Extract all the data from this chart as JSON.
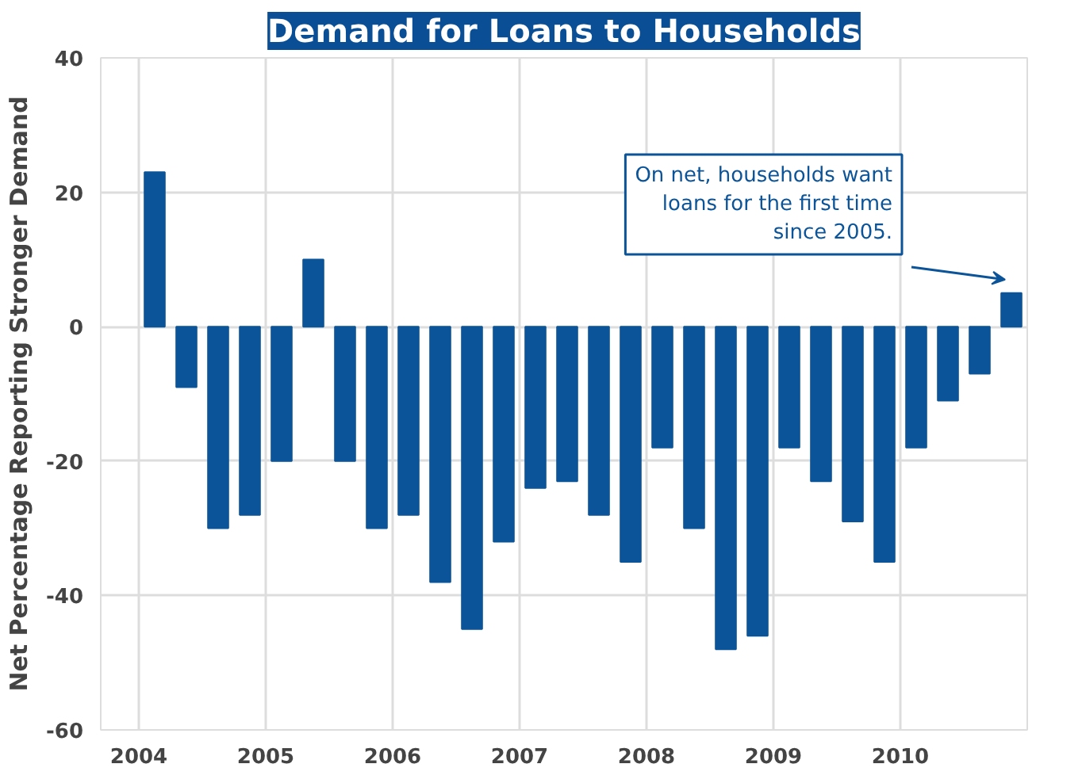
{
  "chart_data": {
    "type": "bar",
    "title": "Demand for Loans to Households",
    "ylabel": "Net Percentage Reporting Stronger Demand",
    "x": [
      2004.125,
      2004.375,
      2004.625,
      2004.875,
      2005.125,
      2005.375,
      2005.625,
      2005.875,
      2006.125,
      2006.375,
      2006.625,
      2006.875,
      2007.125,
      2007.375,
      2007.625,
      2007.875,
      2008.125,
      2008.375,
      2008.625,
      2008.875,
      2009.125,
      2009.375,
      2009.625,
      2009.875,
      2010.125,
      2010.375,
      2010.625,
      2010.875
    ],
    "values": [
      23,
      -9,
      -30,
      -28,
      -20,
      10,
      -20,
      -30,
      -28,
      -38,
      -45,
      -32,
      -24,
      -23,
      -28,
      -35,
      -18,
      -30,
      -48,
      -46,
      -18,
      -23,
      -29,
      -35,
      -18,
      -11,
      -7,
      5
    ],
    "color": "#0b5499",
    "xlim": [
      2003.7,
      2011.0
    ],
    "xticks": [
      2004,
      2005,
      2006,
      2007,
      2008,
      2009,
      2010
    ],
    "ylim": [
      -60,
      40
    ],
    "yticks": [
      -60,
      -40,
      -20,
      0,
      20,
      40
    ],
    "grid": true,
    "annotations": [
      "On net, households want\nloans for the first time\nsince 2005."
    ]
  }
}
